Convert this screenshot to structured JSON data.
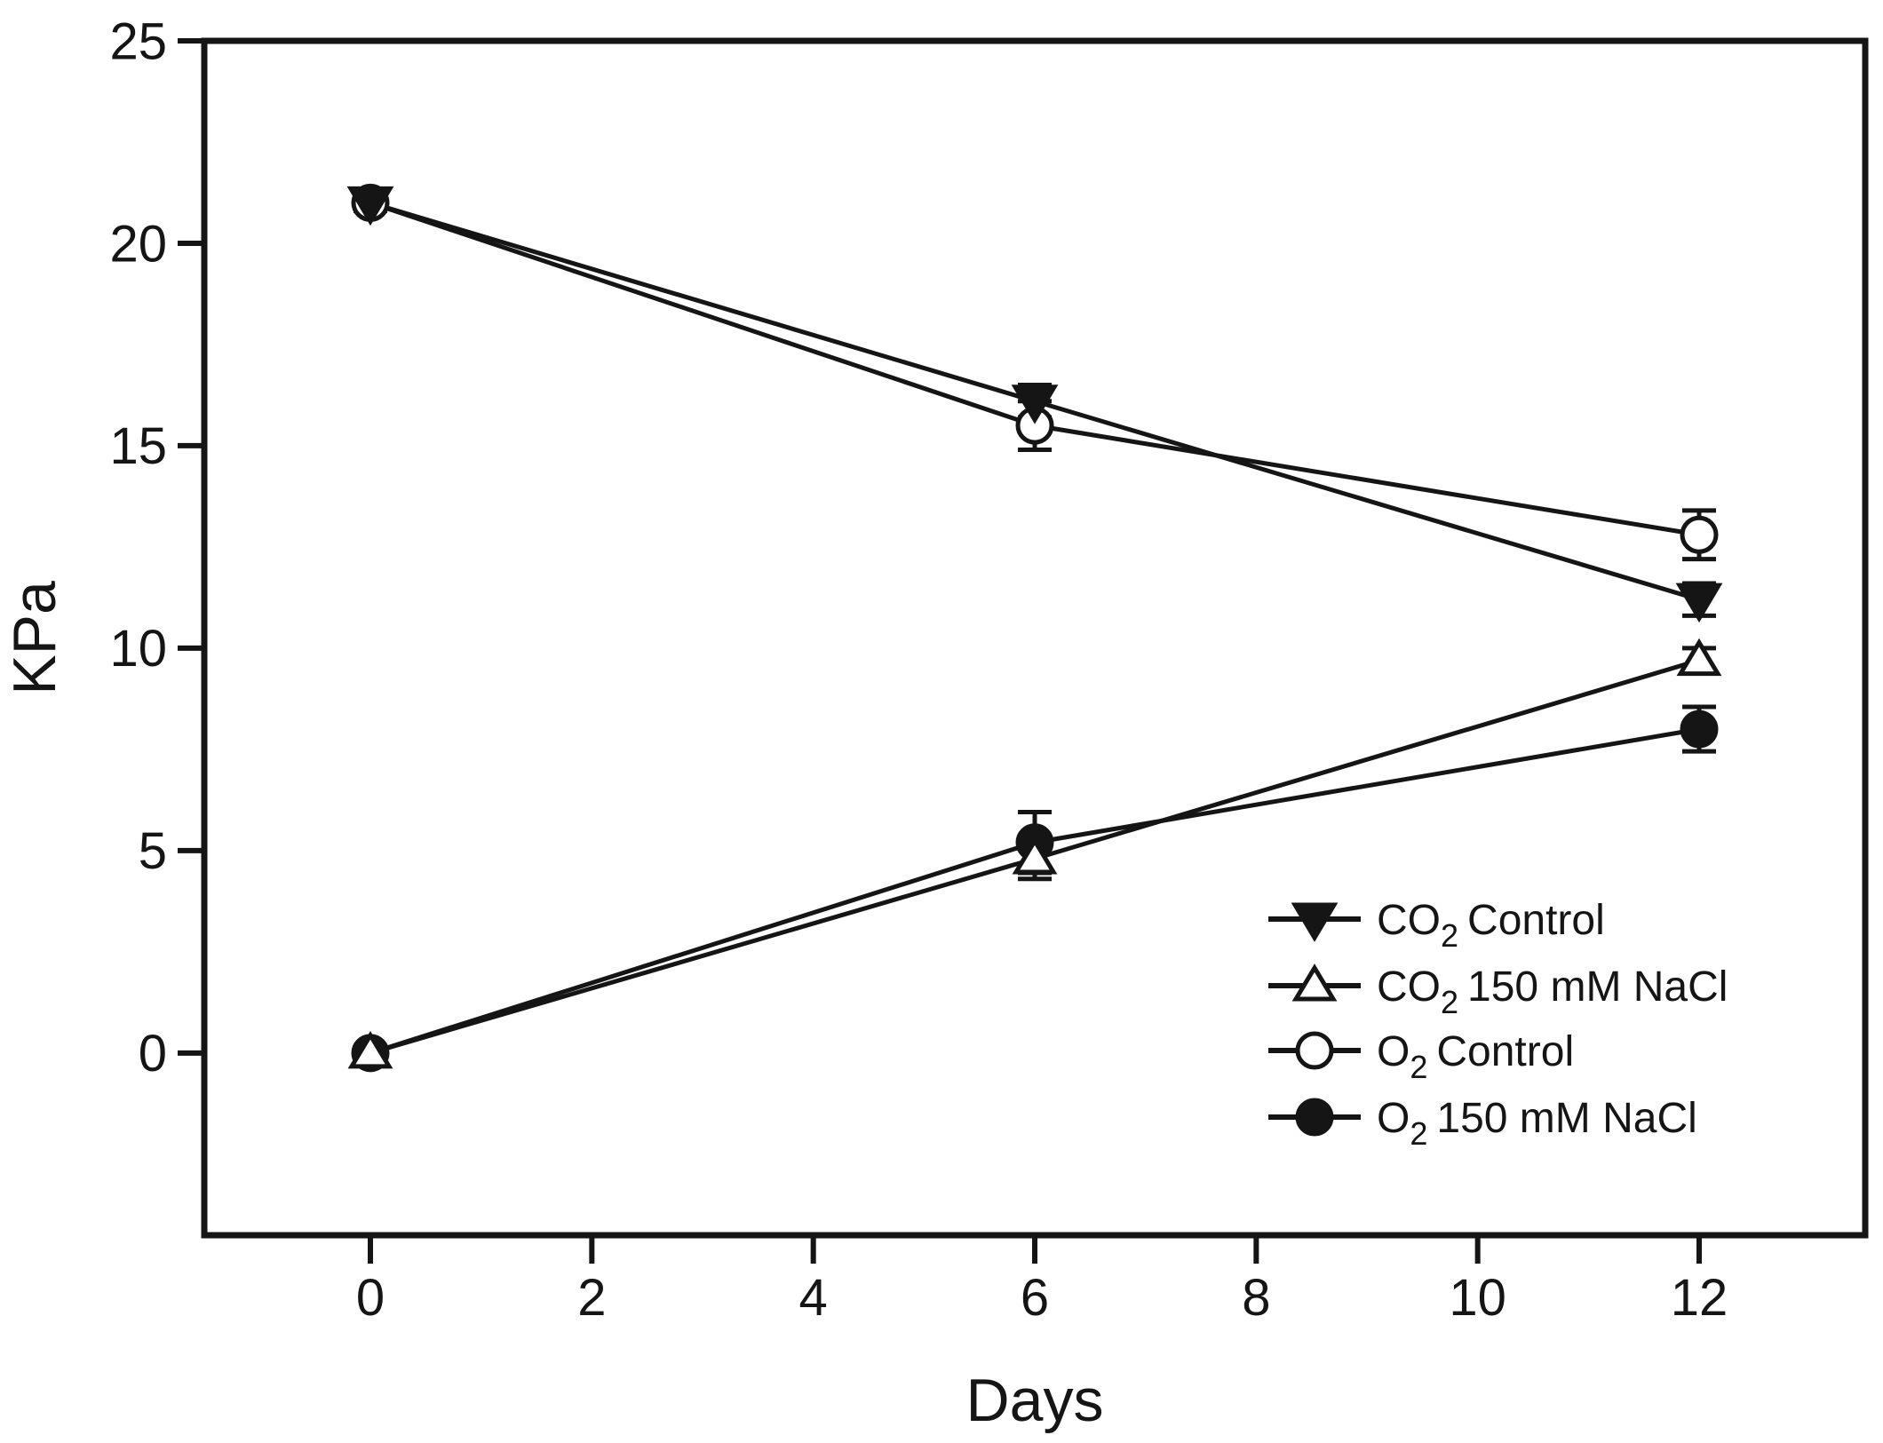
{
  "chart_data": {
    "type": "line",
    "title": "",
    "xlabel": "Days",
    "ylabel": "KPa",
    "grid": false,
    "background_color": "#ffffff",
    "foreground_color": "#151515",
    "xlim": [
      -1.5,
      13.5
    ],
    "ylim": [
      -4.5,
      25
    ],
    "x_ticks": [
      0,
      2,
      4,
      6,
      8,
      10,
      12
    ],
    "y_ticks": [
      0,
      5,
      10,
      15,
      20,
      25
    ],
    "x": [
      0,
      6,
      12
    ],
    "series": [
      {
        "name": "O2 Control",
        "marker": "circle",
        "fill": "open",
        "values": [
          21.0,
          15.5,
          12.8
        ],
        "errors": [
          0.2,
          0.6,
          0.6
        ]
      },
      {
        "name": "O2 150 mM NaCl",
        "marker": "circle",
        "fill": "filled",
        "values": [
          0.0,
          5.2,
          8.0
        ],
        "errors": [
          0.15,
          0.75,
          0.55
        ]
      },
      {
        "name": "CO2 Control",
        "marker": "triangle-down",
        "fill": "filled",
        "values": [
          21.0,
          16.1,
          11.2
        ],
        "errors": [
          0.15,
          0.4,
          0.4
        ]
      },
      {
        "name": "CO2 150 mM NaCl",
        "marker": "triangle-up",
        "fill": "open",
        "values": [
          0.0,
          4.8,
          9.7
        ],
        "errors": [
          0.15,
          0.5,
          0.3
        ]
      }
    ],
    "legend_position": "lower-right-inside",
    "legend": [
      {
        "series": "CO2 Control",
        "prefix": "CO",
        "sub": "2",
        "suffix": "Control"
      },
      {
        "series": "CO2 150 mM NaCl",
        "prefix": "CO",
        "sub": "2",
        "suffix": "150 mM NaCl"
      },
      {
        "series": "O2 Control",
        "prefix": "O",
        "sub": "2",
        "suffix": "Control"
      },
      {
        "series": "O2 150 mM NaCl",
        "prefix": "O",
        "sub": "2",
        "suffix": "150 mM NaCl"
      }
    ]
  }
}
